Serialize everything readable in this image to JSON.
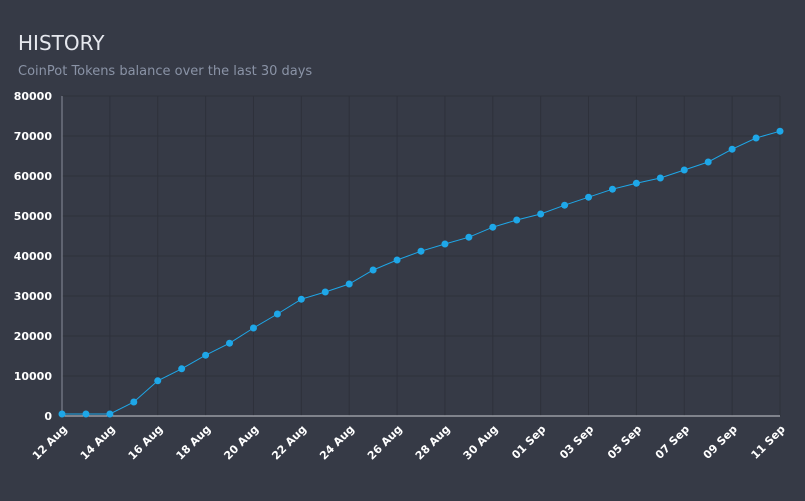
{
  "chart_data": {
    "type": "line",
    "title": "HISTORY",
    "subtitle": "CoinPot Tokens balance over the last 30 days",
    "categories": [
      "12 Aug",
      null,
      "14 Aug",
      null,
      "16 Aug",
      null,
      "18 Aug",
      null,
      "20 Aug",
      null,
      "22 Aug",
      null,
      "24 Aug",
      null,
      "26 Aug",
      null,
      "28 Aug",
      null,
      "30 Aug",
      null,
      "01 Sep",
      null,
      "03 Sep",
      null,
      "05 Sep",
      null,
      "07 Sep",
      null,
      "09 Sep",
      null,
      "11 Sep"
    ],
    "series": [
      {
        "name": "CoinPot Tokens",
        "color": "#1ea7e8",
        "values": [
          500,
          500,
          500,
          3500,
          8800,
          11800,
          15200,
          18200,
          22000,
          25500,
          29200,
          31000,
          33000,
          36500,
          39000,
          41200,
          43000,
          44700,
          47200,
          49000,
          50500,
          52700,
          54700,
          56700,
          58200,
          59500,
          61500,
          63500,
          66700,
          69500,
          71200
        ]
      }
    ],
    "ylim": [
      0,
      80000
    ],
    "yticks": [
      0,
      10000,
      20000,
      30000,
      40000,
      50000,
      60000,
      70000,
      80000
    ],
    "grid": true
  }
}
